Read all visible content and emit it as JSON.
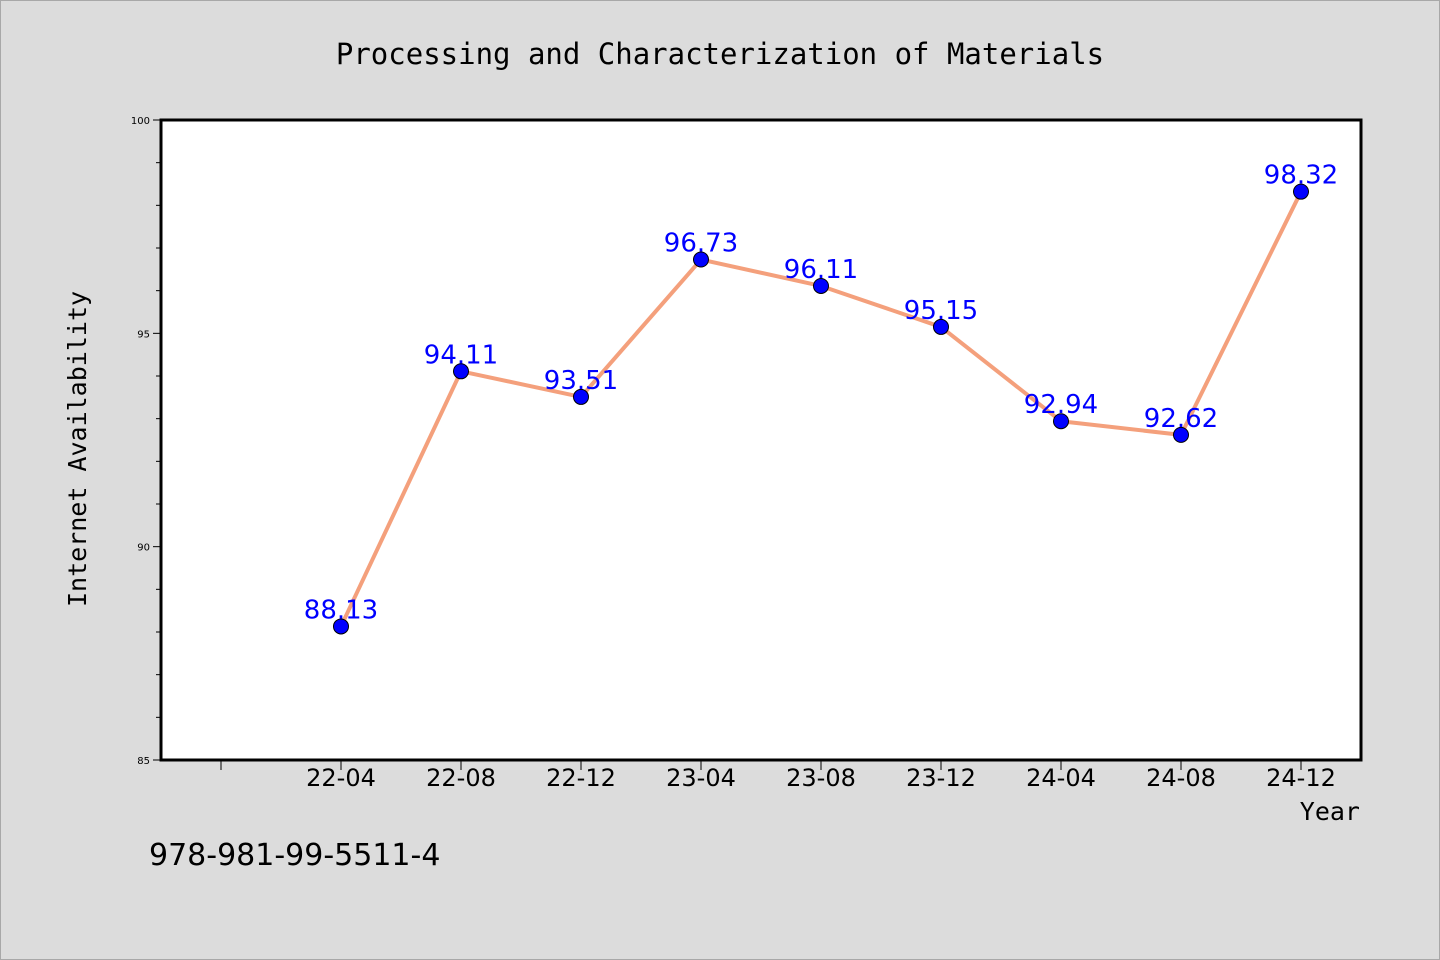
{
  "chart_data": {
    "type": "line",
    "title": "Processing and Characterization of Materials",
    "xlabel": "Year",
    "ylabel": "Internet Availability",
    "categories": [
      "22-04",
      "22-08",
      "22-12",
      "23-04",
      "23-08",
      "23-12",
      "24-04",
      "24-08",
      "24-12"
    ],
    "series": [
      {
        "values": [
          88.13,
          94.11,
          93.51,
          96.73,
          96.11,
          95.15,
          92.94,
          92.62,
          98.32
        ],
        "labels": [
          "88.13",
          "94.11",
          "93.51",
          "96.73",
          "96.11",
          "95.15",
          "92.94",
          "92.62",
          "98.32"
        ]
      }
    ],
    "ylim": [
      85,
      100
    ],
    "yticks": [
      85,
      90,
      95,
      100
    ],
    "ytick_labels": [
      "85",
      "90",
      "95",
      "100"
    ],
    "grid": false,
    "colors": {
      "line": "#f4a07c",
      "marker": "#0000ff",
      "data_label": "#0000ff",
      "background": "#dcdcdc",
      "plot_area": "#ffffff"
    }
  },
  "footer": {
    "isbn": "978-981-99-5511-4"
  }
}
